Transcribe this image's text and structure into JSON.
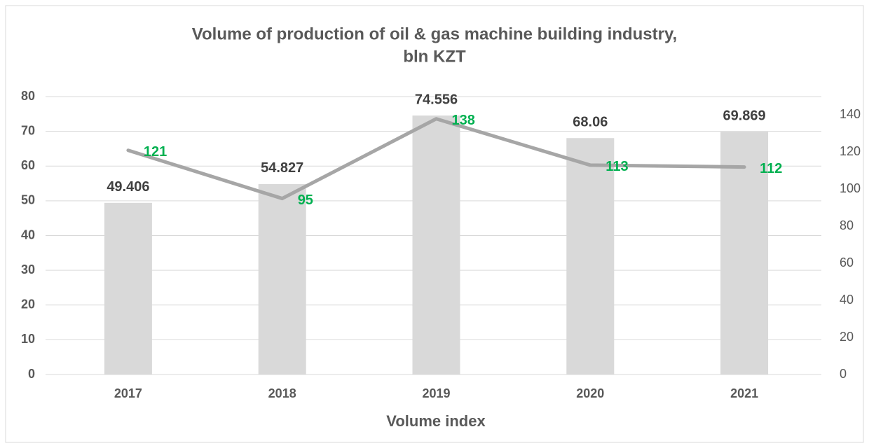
{
  "chart_data": {
    "type": "combo",
    "title": [
      "Volume of production of oil & gas machine building industry,",
      "bln KZT"
    ],
    "x_label": "Volume index",
    "categories": [
      "2017",
      "2018",
      "2019",
      "2020",
      "2021"
    ],
    "series": [
      {
        "type": "bar",
        "color": "#d9d9d9",
        "label_color": "#404040",
        "values": [
          49.406,
          54.827,
          74.556,
          68.06,
          69.869
        ]
      },
      {
        "type": "line",
        "axis": "y2",
        "color": "#a6a6a6",
        "label_color": "#00b050",
        "values": [
          121,
          95,
          138,
          113,
          112
        ]
      }
    ],
    "ylim": [
      0,
      80
    ],
    "yticks": [
      0,
      10,
      20,
      30,
      40,
      50,
      60,
      70,
      80
    ],
    "y2lim": [
      0,
      150
    ],
    "y2ticks": [
      0,
      20,
      40,
      60,
      80,
      100,
      120,
      140
    ],
    "grid": true
  }
}
